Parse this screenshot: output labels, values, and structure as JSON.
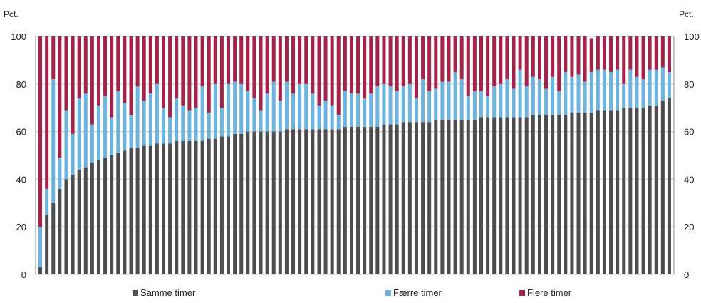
{
  "chart_data": {
    "type": "bar",
    "stacked": true,
    "y_unit_left": "Pct.",
    "y_unit_right": "Pct.",
    "ylim": [
      0,
      100
    ],
    "yticks": [
      0,
      20,
      40,
      60,
      80,
      100
    ],
    "grid": true,
    "legend_position": "bottom",
    "colors": {
      "Samme timer": "#4d4d4f",
      "Færre timer": "#6cb4de",
      "Flere timer": "#a3234a"
    },
    "series": [
      {
        "name": "Samme timer",
        "values": [
          3,
          25,
          30,
          36,
          40,
          42,
          44,
          45,
          47,
          48,
          49,
          50,
          51,
          52,
          53,
          53,
          54,
          54,
          55,
          55,
          55,
          56,
          56,
          56,
          56,
          56,
          57,
          57,
          58,
          58,
          59,
          59,
          60,
          60,
          60,
          60,
          60,
          60,
          61,
          61,
          61,
          61,
          61,
          61,
          61,
          61,
          61,
          62,
          62,
          62,
          62,
          62,
          62,
          63,
          63,
          63,
          64,
          64,
          64,
          64,
          64,
          65,
          65,
          65,
          65,
          65,
          65,
          65,
          66,
          66,
          66,
          66,
          66,
          66,
          66,
          66,
          67,
          67,
          67,
          67,
          67,
          67,
          68,
          68,
          68,
          68,
          69,
          69,
          69,
          69,
          70,
          70,
          70,
          70,
          71,
          71,
          73,
          74
        ]
      },
      {
        "name": "Færre timer",
        "values": [
          17,
          11,
          52,
          13,
          29,
          17,
          30,
          31,
          16,
          23,
          26,
          16,
          26,
          20,
          14,
          26,
          19,
          22,
          25,
          15,
          11,
          18,
          15,
          13,
          14,
          23,
          11,
          23,
          12,
          22,
          22,
          21,
          17,
          14,
          9,
          16,
          21,
          13,
          20,
          15,
          19,
          19,
          15,
          10,
          12,
          10,
          6,
          15,
          14,
          14,
          12,
          14,
          17,
          17,
          16,
          14,
          15,
          16,
          10,
          18,
          13,
          13,
          16,
          16,
          20,
          17,
          10,
          12,
          11,
          9,
          13,
          14,
          16,
          12,
          20,
          13,
          16,
          15,
          11,
          16,
          10,
          18,
          15,
          16,
          13,
          17,
          17,
          17,
          16,
          17,
          10,
          16,
          13,
          12,
          15,
          15,
          14,
          11
        ]
      },
      {
        "name": "Flere timer",
        "values": [
          80,
          64,
          18,
          51,
          31,
          41,
          26,
          24,
          37,
          29,
          25,
          34,
          23,
          28,
          33,
          21,
          27,
          24,
          20,
          30,
          34,
          26,
          29,
          31,
          30,
          21,
          32,
          20,
          30,
          20,
          19,
          20,
          23,
          26,
          31,
          24,
          19,
          27,
          19,
          24,
          20,
          20,
          24,
          29,
          27,
          29,
          33,
          23,
          24,
          24,
          26,
          24,
          21,
          20,
          21,
          23,
          21,
          20,
          26,
          18,
          23,
          22,
          19,
          19,
          15,
          18,
          25,
          23,
          23,
          25,
          21,
          20,
          18,
          22,
          14,
          21,
          17,
          18,
          22,
          17,
          23,
          15,
          17,
          16,
          19,
          14,
          14,
          14,
          15,
          14,
          20,
          14,
          17,
          18,
          14,
          14,
          13,
          15
        ]
      }
    ]
  }
}
